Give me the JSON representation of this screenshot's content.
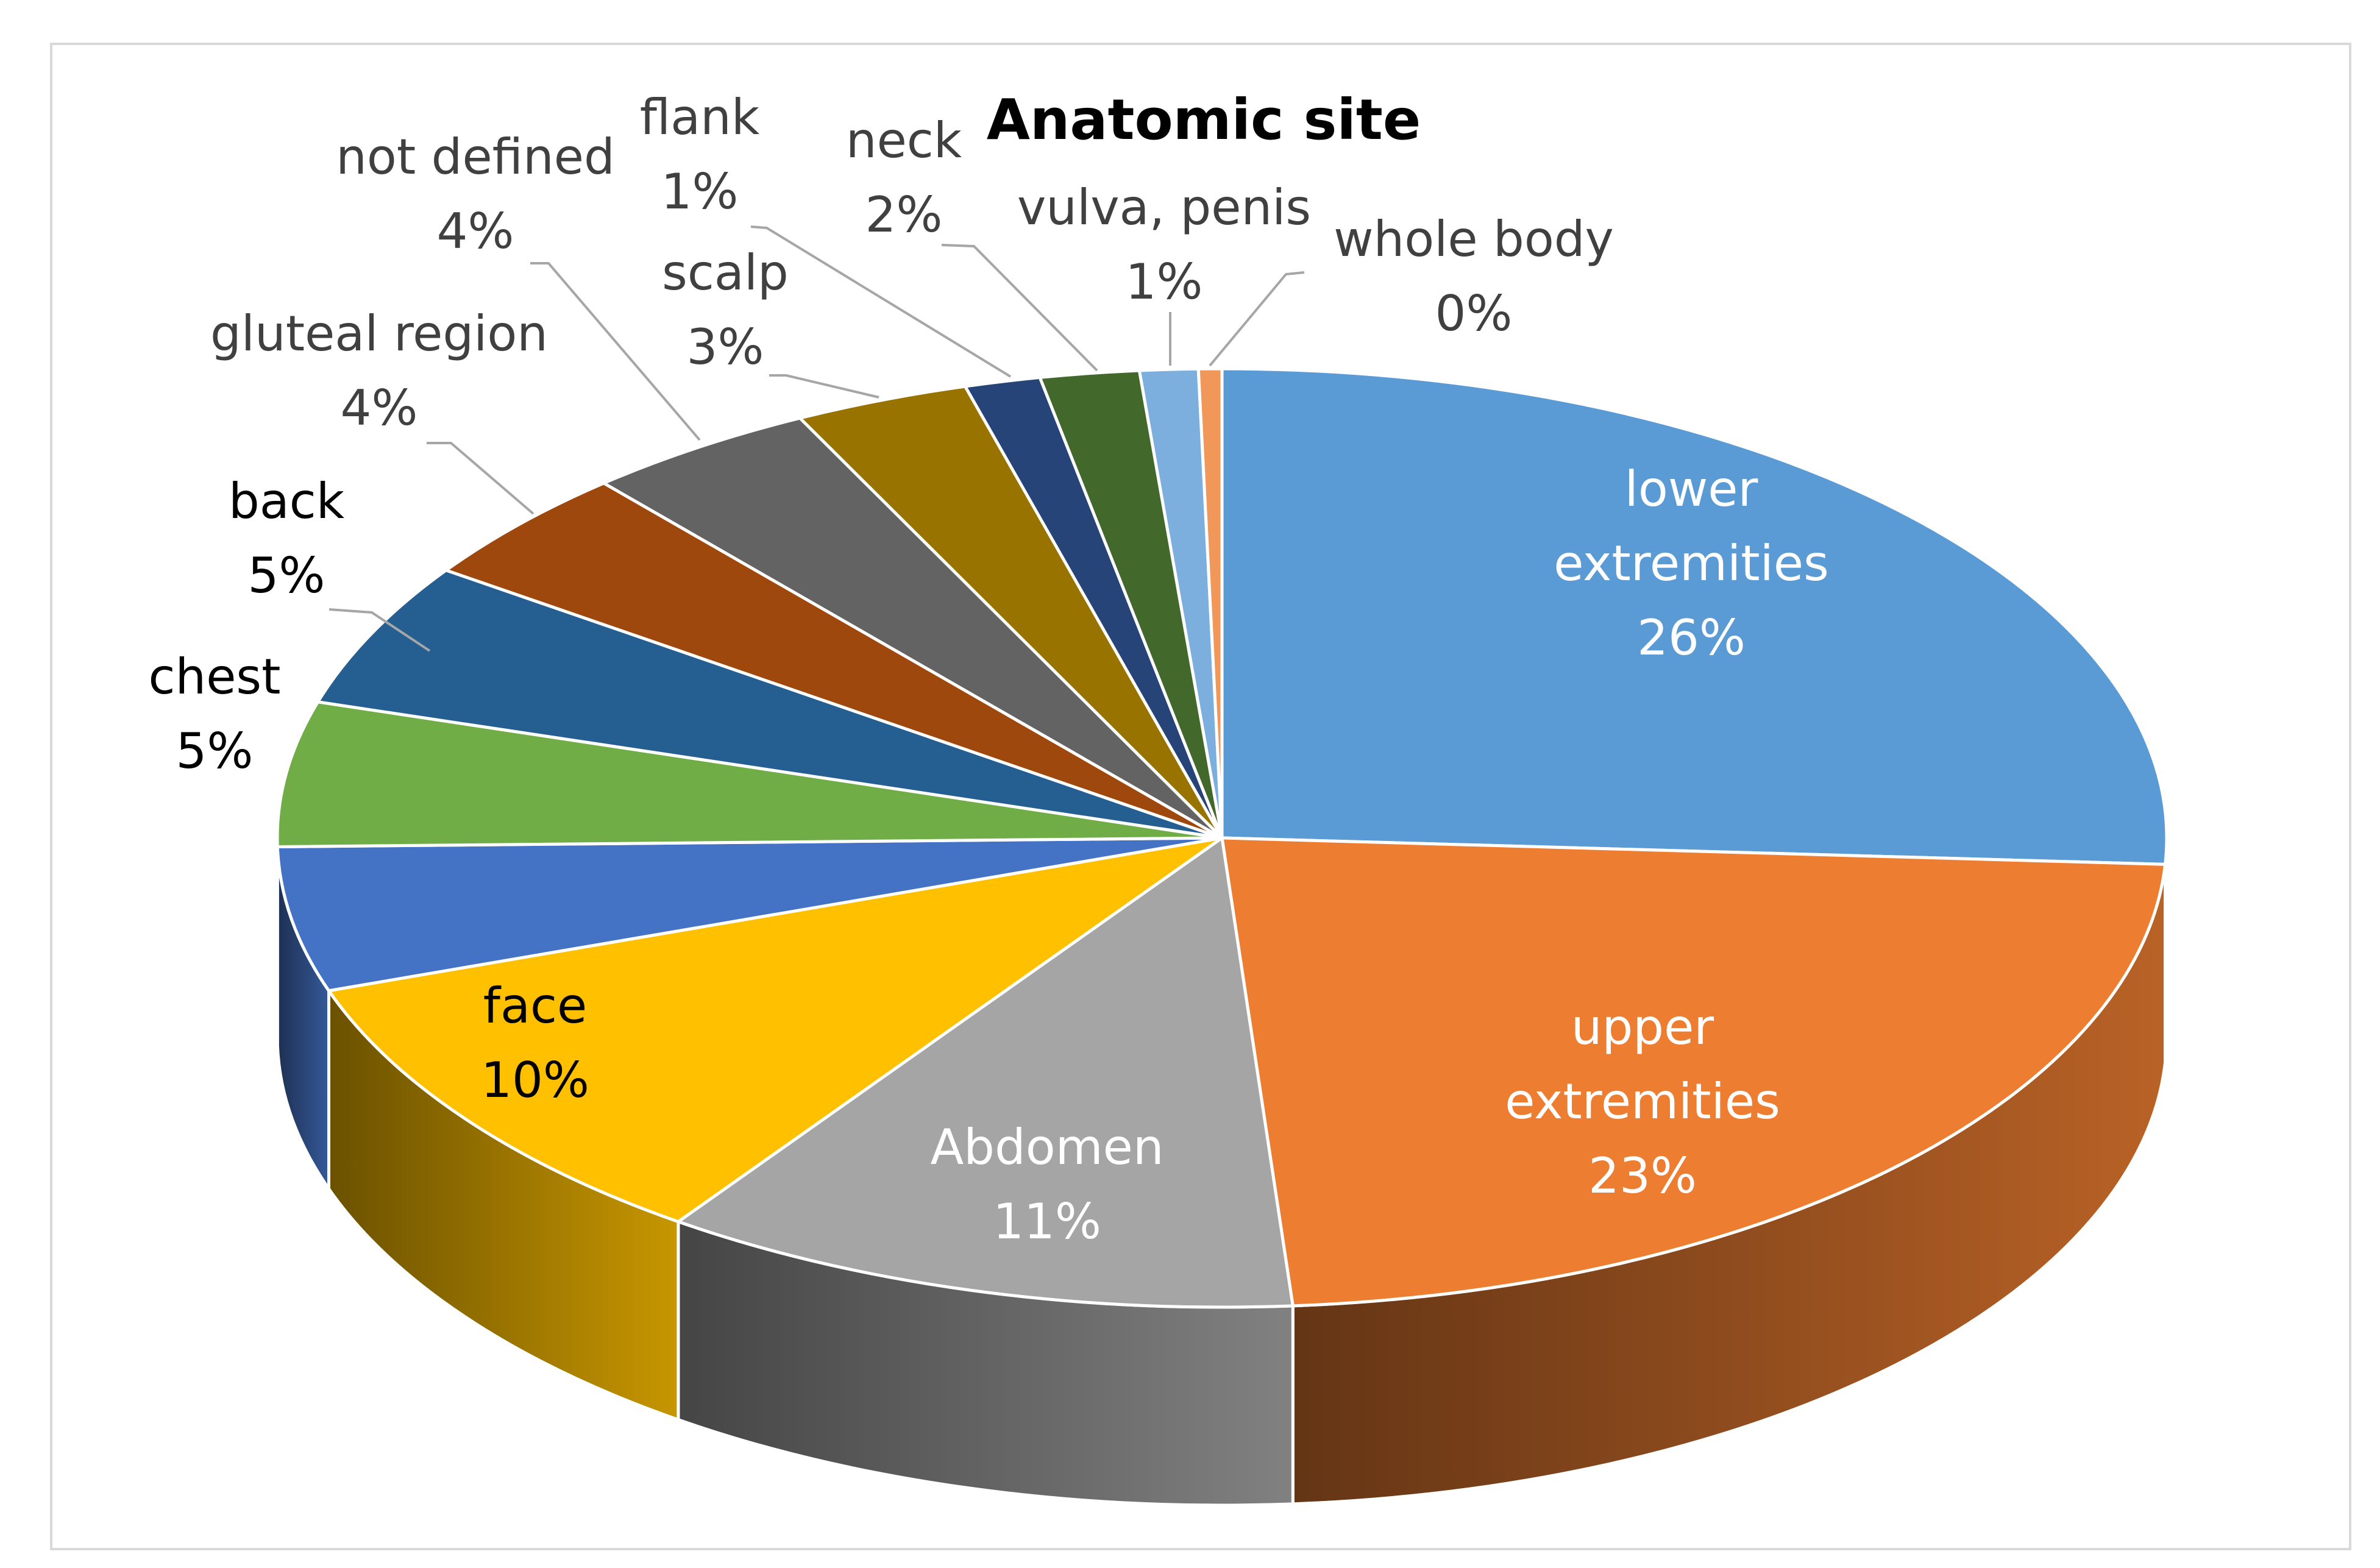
{
  "chart_data": {
    "type": "pie",
    "style": "3d",
    "title": "Anatomic site",
    "legend": "none",
    "slices": [
      {
        "label": "lower extremities",
        "label_lines": [
          "lower",
          "extremities"
        ],
        "percent_label": "26%",
        "value": 26,
        "color": "#5B9BD5",
        "label_color": "#ffffff"
      },
      {
        "label": "upper extremities",
        "label_lines": [
          "upper",
          "extremities"
        ],
        "percent_label": "23%",
        "value": 23,
        "color": "#ED7D31",
        "label_color": "#ffffff"
      },
      {
        "label": "Abdomen",
        "label_lines": [
          "Abdomen"
        ],
        "percent_label": "11%",
        "value": 11,
        "color": "#A5A5A5",
        "label_color": "#ffffff"
      },
      {
        "label": "face",
        "label_lines": [
          "face"
        ],
        "percent_label": "10%",
        "value": 10,
        "color": "#FFC000",
        "label_color": "#000000"
      },
      {
        "label": "",
        "label_lines": [],
        "percent_label": "",
        "value": 5,
        "color": "#4472C4",
        "label_color": "#000000"
      },
      {
        "label": "chest",
        "label_lines": [
          "chest"
        ],
        "percent_label": "5%",
        "value": 5,
        "color": "#70AD47",
        "label_color": "#000000"
      },
      {
        "label": "back",
        "label_lines": [
          "back"
        ],
        "percent_label": "5%",
        "value": 5,
        "color": "#255E91",
        "label_color": "#000000"
      },
      {
        "label": "gluteal region",
        "label_lines": [
          "gluteal region"
        ],
        "percent_label": "4%",
        "value": 4,
        "color": "#9E480E",
        "label_color": "#404040"
      },
      {
        "label": "not defined",
        "label_lines": [
          "not defined"
        ],
        "percent_label": "4%",
        "value": 4,
        "color": "#636363",
        "label_color": "#404040"
      },
      {
        "label": "scalp",
        "label_lines": [
          "scalp"
        ],
        "percent_label": "3%",
        "value": 3,
        "color": "#997300",
        "label_color": "#404040"
      },
      {
        "label": "flank",
        "label_lines": [
          "flank"
        ],
        "percent_label": "1%",
        "value": 1.3,
        "color": "#264478",
        "label_color": "#404040"
      },
      {
        "label": "neck",
        "label_lines": [
          "neck"
        ],
        "percent_label": "2%",
        "value": 1.7,
        "color": "#43682B",
        "label_color": "#404040"
      },
      {
        "label": "vulva, penis",
        "label_lines": [
          "vulva, penis"
        ],
        "percent_label": "1%",
        "value": 1,
        "color": "#7CAFDD",
        "label_color": "#404040"
      },
      {
        "label": "whole body",
        "label_lines": [
          "whole body"
        ],
        "percent_label": "0%",
        "value": 0.4,
        "color": "#F1975A",
        "label_color": "#404040"
      }
    ]
  }
}
